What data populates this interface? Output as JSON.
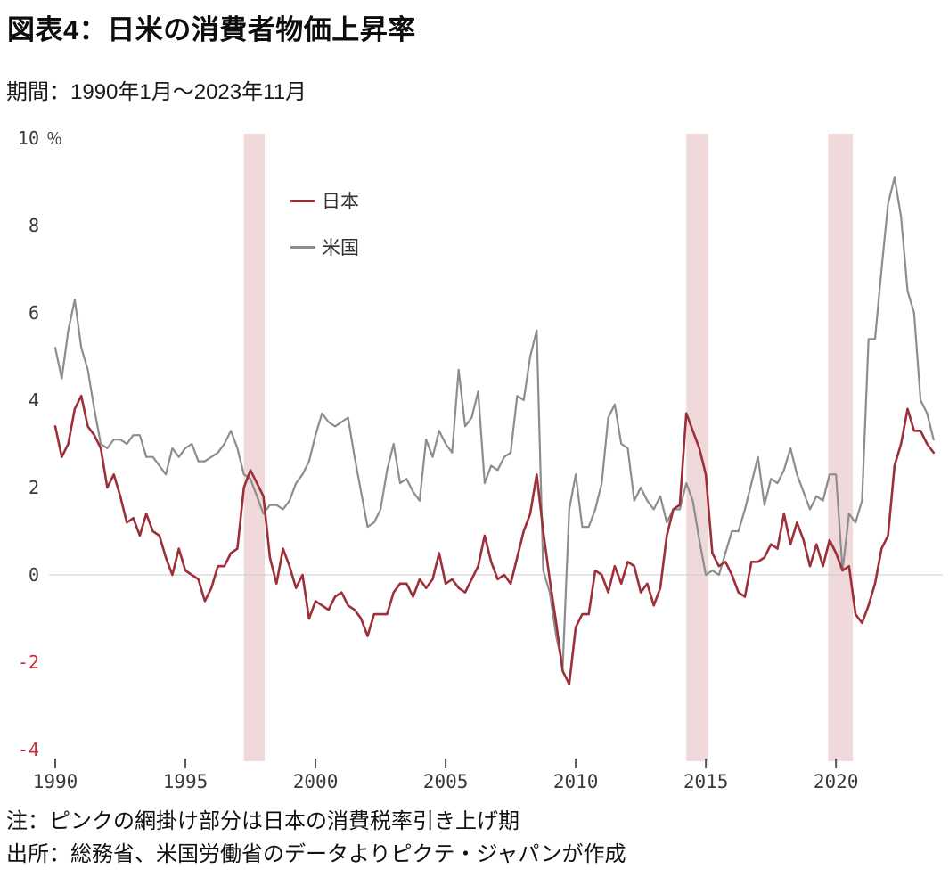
{
  "header": {
    "title": "図表4：日米の消費者物価上昇率",
    "subtitle": "期間：1990年1月～2023年11月"
  },
  "footer": {
    "note": "注：ピンクの網掛け部分は日本の消費税率引き上げ期",
    "source": "出所：総務省、米国労働省のデータよりピクテ・ジャパンが作成"
  },
  "chart_data": {
    "type": "line",
    "title": "図表4：日米の消費者物価上昇率",
    "period": "1990年1月～2023年11月",
    "unit_label": "％",
    "xlabel": "",
    "ylabel": "％",
    "xlim": [
      1990,
      2024
    ],
    "ylim": [
      -4.6,
      10
    ],
    "x_ticks": [
      1990,
      1995,
      2000,
      2005,
      2010,
      2015,
      2020
    ],
    "y_ticks": [
      10,
      8,
      6,
      4,
      2,
      0,
      -2,
      -4
    ],
    "grid": "zero-line-only",
    "legend_position": "inside-top-left",
    "x_start": 1990.0,
    "x_step_years": 0.25,
    "series": [
      {
        "name": "日本",
        "color": "#9c2f38",
        "stroke_width": 2.6,
        "values": [
          3.4,
          2.7,
          3.0,
          3.8,
          4.1,
          3.4,
          3.2,
          2.9,
          2.0,
          2.3,
          1.8,
          1.2,
          1.3,
          0.9,
          1.4,
          1.0,
          0.9,
          0.4,
          0.0,
          0.6,
          0.1,
          0.0,
          -0.1,
          -0.6,
          -0.3,
          0.2,
          0.2,
          0.5,
          0.6,
          2.0,
          2.4,
          2.1,
          1.8,
          0.4,
          -0.2,
          0.6,
          0.2,
          -0.3,
          0.0,
          -1.0,
          -0.6,
          -0.7,
          -0.8,
          -0.5,
          -0.4,
          -0.7,
          -0.8,
          -1.0,
          -1.4,
          -0.9,
          -0.9,
          -0.9,
          -0.4,
          -0.2,
          -0.2,
          -0.5,
          -0.1,
          -0.3,
          -0.1,
          0.5,
          -0.2,
          -0.1,
          -0.3,
          -0.4,
          -0.1,
          0.2,
          0.9,
          0.3,
          -0.1,
          0.0,
          -0.2,
          0.4,
          1.0,
          1.4,
          2.3,
          1.0,
          -0.1,
          -1.1,
          -2.2,
          -2.5,
          -1.2,
          -0.9,
          -0.9,
          0.1,
          0.0,
          -0.4,
          0.2,
          -0.2,
          0.3,
          0.2,
          -0.4,
          -0.2,
          -0.7,
          -0.3,
          0.9,
          1.5,
          1.6,
          3.7,
          3.3,
          2.9,
          2.3,
          0.5,
          0.2,
          0.3,
          0.0,
          -0.4,
          -0.5,
          0.3,
          0.3,
          0.4,
          0.7,
          0.6,
          1.4,
          0.7,
          1.2,
          0.8,
          0.2,
          0.7,
          0.2,
          0.8,
          0.5,
          0.1,
          0.2,
          -0.9,
          -1.1,
          -0.7,
          -0.2,
          0.6,
          0.9,
          2.5,
          3.0,
          3.8,
          3.3,
          3.3,
          3.0,
          2.8
        ]
      },
      {
        "name": "米国",
        "color": "#8d8d8d",
        "stroke_width": 2.2,
        "values": [
          5.2,
          4.5,
          5.6,
          6.3,
          5.2,
          4.7,
          3.8,
          3.0,
          2.9,
          3.1,
          3.1,
          3.0,
          3.2,
          3.2,
          2.7,
          2.7,
          2.5,
          2.3,
          2.9,
          2.7,
          2.9,
          3.0,
          2.6,
          2.6,
          2.7,
          2.8,
          3.0,
          3.3,
          2.9,
          2.3,
          2.2,
          1.8,
          1.4,
          1.6,
          1.6,
          1.5,
          1.7,
          2.1,
          2.3,
          2.6,
          3.2,
          3.7,
          3.5,
          3.4,
          3.5,
          3.6,
          2.7,
          1.9,
          1.1,
          1.2,
          1.5,
          2.4,
          3.0,
          2.1,
          2.2,
          1.9,
          1.7,
          3.1,
          2.7,
          3.3,
          3.0,
          2.8,
          4.7,
          3.4,
          3.6,
          4.2,
          2.1,
          2.5,
          2.4,
          2.7,
          2.8,
          4.1,
          4.0,
          5.0,
          5.6,
          0.1,
          -0.4,
          -1.4,
          -2.1,
          1.5,
          2.3,
          1.1,
          1.1,
          1.5,
          2.1,
          3.6,
          3.9,
          3.0,
          2.9,
          1.7,
          2.0,
          1.7,
          1.5,
          1.8,
          1.2,
          1.5,
          1.5,
          2.1,
          1.7,
          0.8,
          0.0,
          0.1,
          0.0,
          0.5,
          1.0,
          1.0,
          1.5,
          2.1,
          2.7,
          1.6,
          2.2,
          2.1,
          2.4,
          2.9,
          2.3,
          1.9,
          1.5,
          1.8,
          1.7,
          2.3,
          2.3,
          0.1,
          1.4,
          1.2,
          1.7,
          5.4,
          5.4,
          7.0,
          8.5,
          9.1,
          8.2,
          6.5,
          6.0,
          4.0,
          3.7,
          3.1
        ]
      }
    ],
    "shaded_bands": {
      "meaning": "日本の消費税率引き上げ期",
      "color": "#f0d9db",
      "ranges": [
        {
          "from": 1997.25,
          "to": 1998.05
        },
        {
          "from": 2014.25,
          "to": 2015.1
        },
        {
          "from": 2019.7,
          "to": 2020.65
        }
      ]
    },
    "colors": {
      "tick_text": "#3a3a3a",
      "negative_tick_text": "#cc2b35",
      "zero_line": "#cccccc",
      "axis_tick": "#555555"
    }
  }
}
